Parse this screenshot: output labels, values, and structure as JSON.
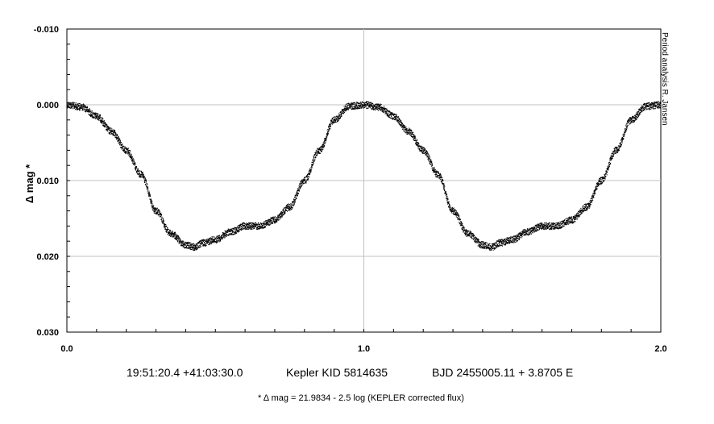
{
  "chart_data": {
    "type": "scatter",
    "xlim": [
      0.0,
      2.0
    ],
    "ylim": [
      -0.01,
      0.03
    ],
    "y_inverted": true,
    "grid": true,
    "x_ticks": [
      "0.0",
      "1.0",
      "2.0"
    ],
    "y_ticks": [
      "-0.010",
      "0.000",
      "0.010",
      "0.020",
      "0.030"
    ],
    "x_tick_values": [
      0.0,
      1.0,
      2.0
    ],
    "y_tick_values": [
      -0.01,
      0.0,
      0.01,
      0.02,
      0.03
    ],
    "ylabel": "Δ mag *",
    "credit": "Period analysis R. Jansen",
    "subtitle_parts": [
      "19:51:20.4 +41:03:30.0",
      "Kepler KID 5814635",
      "BJD 2455005.11 + 3.8705 E"
    ],
    "footnote": "* Δ mag = 21.9834 - 2.5 log (KEPLER corrected flux)",
    "series": [
      {
        "phase": [
          0.0,
          0.05,
          0.1,
          0.15,
          0.2,
          0.25,
          0.3,
          0.35,
          0.4,
          0.43,
          0.46,
          0.5,
          0.55,
          0.6,
          0.65,
          0.7,
          0.75,
          0.8,
          0.85,
          0.9,
          0.95,
          1.0
        ],
        "delta_mag": [
          0.0,
          0.0003,
          0.0015,
          0.0035,
          0.006,
          0.0092,
          0.014,
          0.017,
          0.0185,
          0.0188,
          0.0182,
          0.0178,
          0.0168,
          0.016,
          0.016,
          0.0152,
          0.0135,
          0.01,
          0.006,
          0.002,
          0.0002,
          0.0
        ],
        "marker": "dot",
        "color": "#000000"
      }
    ],
    "repeat_cycles": 2
  }
}
